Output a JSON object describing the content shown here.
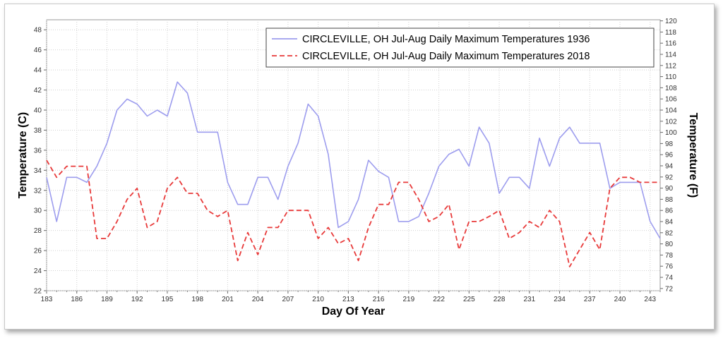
{
  "chart_data": {
    "type": "line",
    "xlabel": "Day Of Year",
    "ylabel": "Temperature (C)",
    "y2label": "Temperature (F)",
    "xlim": [
      183,
      244
    ],
    "ylim": [
      22,
      49
    ],
    "y2lim": [
      71.6,
      120.2
    ],
    "xticks": [
      "183",
      "186",
      "189",
      "192",
      "195",
      "198",
      "201",
      "204",
      "207",
      "210",
      "213",
      "216",
      "219",
      "222",
      "225",
      "228",
      "231",
      "234",
      "237",
      "240",
      "243"
    ],
    "yticks": [
      "22",
      "24",
      "26",
      "28",
      "30",
      "32",
      "34",
      "36",
      "38",
      "40",
      "42",
      "44",
      "46",
      "48"
    ],
    "y2ticks": [
      "72",
      "74",
      "76",
      "78",
      "80",
      "82",
      "84",
      "86",
      "88",
      "90",
      "92",
      "94",
      "96",
      "98",
      "100",
      "102",
      "104",
      "106",
      "108",
      "110",
      "112",
      "114",
      "116",
      "118",
      "120"
    ],
    "grid": true,
    "legend_position": "top-right",
    "x": [
      183,
      184,
      185,
      186,
      187,
      188,
      189,
      190,
      191,
      192,
      193,
      194,
      195,
      196,
      197,
      198,
      199,
      200,
      201,
      202,
      203,
      204,
      205,
      206,
      207,
      208,
      209,
      210,
      211,
      212,
      213,
      214,
      215,
      216,
      217,
      218,
      219,
      220,
      221,
      222,
      223,
      224,
      225,
      226,
      227,
      228,
      229,
      230,
      231,
      232,
      233,
      234,
      235,
      236,
      237,
      238,
      239,
      240,
      241,
      242,
      243,
      244
    ],
    "series": [
      {
        "name": "CIRCLEVILLE, OH  Jul-Aug  Daily Maximum Temperatures 1936",
        "color": "#9d9dee",
        "style": "solid",
        "values": [
          33.3,
          28.9,
          33.3,
          33.3,
          32.8,
          34.4,
          36.7,
          40.0,
          41.1,
          40.6,
          39.4,
          40.0,
          39.4,
          42.8,
          41.7,
          37.8,
          37.8,
          37.8,
          32.8,
          30.6,
          30.6,
          33.3,
          33.3,
          31.1,
          34.4,
          36.7,
          40.6,
          39.4,
          35.6,
          28.3,
          28.9,
          31.1,
          35.0,
          33.9,
          33.3,
          28.9,
          28.9,
          29.4,
          31.7,
          34.4,
          35.6,
          36.1,
          34.4,
          38.3,
          36.7,
          31.7,
          33.3,
          33.3,
          32.2,
          37.2,
          34.4,
          37.2,
          38.3,
          36.7,
          36.7,
          36.7,
          32.2,
          32.8,
          32.8,
          32.8,
          28.9,
          27.2
        ]
      },
      {
        "name": "CIRCLEVILLE, OH  Jul-Aug  Daily Maximum Temperatures 2018",
        "color": "#e83a3a",
        "style": "dashed",
        "values": [
          35.0,
          33.3,
          34.4,
          34.4,
          34.4,
          27.2,
          27.2,
          28.9,
          31.1,
          32.2,
          28.3,
          28.9,
          32.2,
          33.3,
          31.7,
          31.7,
          30.0,
          29.4,
          30.0,
          25.0,
          27.8,
          25.6,
          28.3,
          28.3,
          30.0,
          30.0,
          30.0,
          27.2,
          28.3,
          26.7,
          27.2,
          25.0,
          28.3,
          30.6,
          30.6,
          32.8,
          32.8,
          31.1,
          28.9,
          29.4,
          30.6,
          26.1,
          28.9,
          28.9,
          29.4,
          30.0,
          27.2,
          27.8,
          28.9,
          28.3,
          30.0,
          28.9,
          24.4,
          26.1,
          27.8,
          26.1,
          32.2,
          33.3,
          33.3,
          32.8,
          32.8,
          32.8
        ]
      }
    ]
  }
}
